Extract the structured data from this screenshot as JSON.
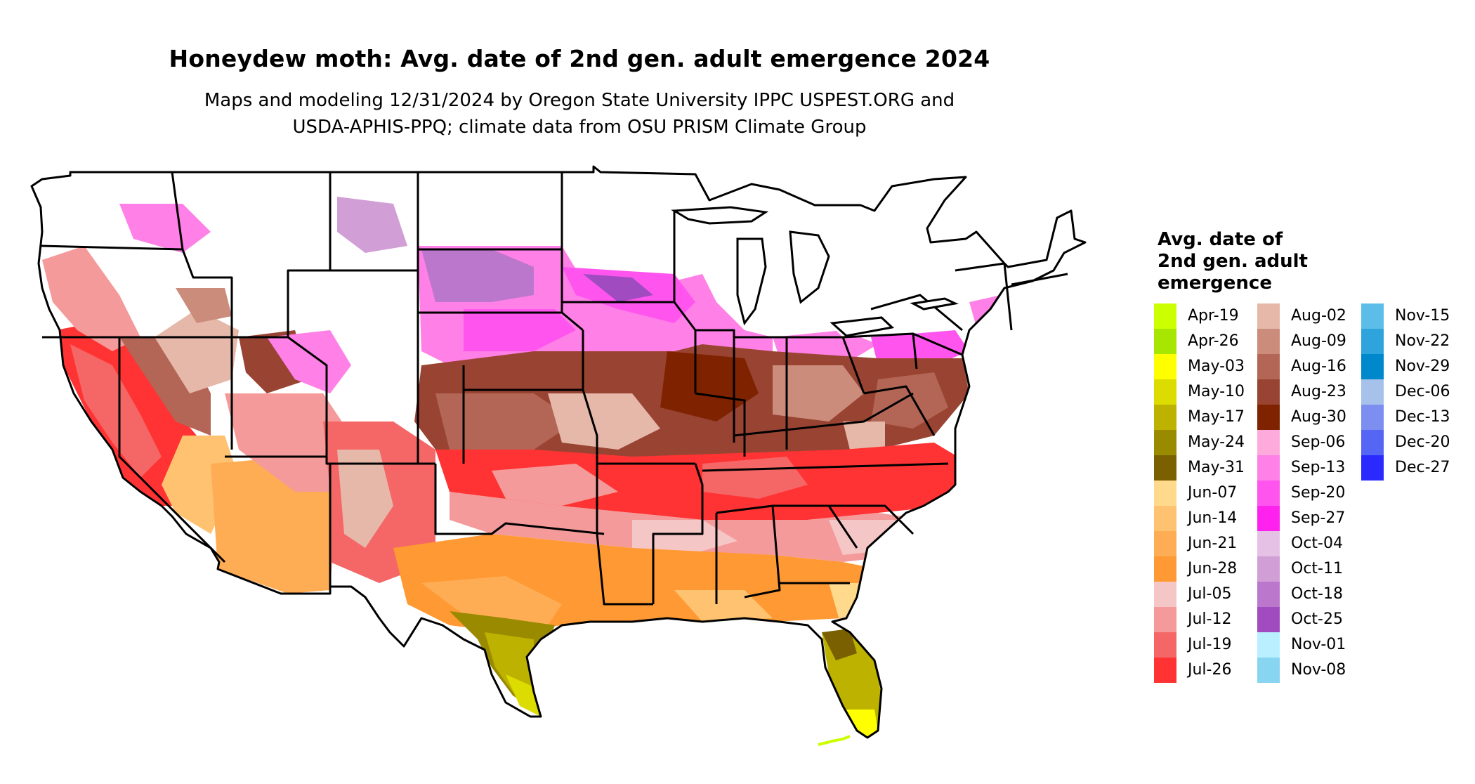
{
  "title": "Honeydew moth: Avg. date of 2nd gen. adult emergence 2024",
  "subtitle": {
    "line1": "Maps and modeling 12/31/2024 by Oregon State University IPPC USPEST.ORG and",
    "line2": "USDA-APHIS-PPQ; climate data from OSU PRISM Climate Group"
  },
  "legend": {
    "title_lines": [
      "Avg. date of",
      "2nd gen. adult",
      "emergence"
    ],
    "columns": [
      [
        {
          "label": "Apr-19",
          "color": "#ccff00"
        },
        {
          "label": "Apr-26",
          "color": "#a6e600"
        },
        {
          "label": "May-03",
          "color": "#ffff00"
        },
        {
          "label": "May-10",
          "color": "#dcdc00"
        },
        {
          "label": "May-17",
          "color": "#bdb200"
        },
        {
          "label": "May-24",
          "color": "#9a8a00"
        },
        {
          "label": "May-31",
          "color": "#7a6000"
        },
        {
          "label": "Jun-07",
          "color": "#ffd98c"
        },
        {
          "label": "Jun-14",
          "color": "#ffc271"
        },
        {
          "label": "Jun-21",
          "color": "#ffad55"
        },
        {
          "label": "Jun-28",
          "color": "#ff9933"
        },
        {
          "label": "Jul-05",
          "color": "#f5c6c6"
        },
        {
          "label": "Jul-12",
          "color": "#f59a9a"
        },
        {
          "label": "Jul-19",
          "color": "#f56666"
        },
        {
          "label": "Jul-26",
          "color": "#ff3333"
        }
      ],
      [
        {
          "label": "Aug-02",
          "color": "#e6b8aa"
        },
        {
          "label": "Aug-09",
          "color": "#cc8c7c"
        },
        {
          "label": "Aug-16",
          "color": "#b36656"
        },
        {
          "label": "Aug-23",
          "color": "#994433"
        },
        {
          "label": "Aug-30",
          "color": "#7f2200"
        },
        {
          "label": "Sep-06",
          "color": "#ffaadd"
        },
        {
          "label": "Sep-13",
          "color": "#ff80e6"
        },
        {
          "label": "Sep-20",
          "color": "#ff55ee"
        },
        {
          "label": "Sep-27",
          "color": "#ff22ee"
        },
        {
          "label": "Oct-04",
          "color": "#e6c1e6"
        },
        {
          "label": "Oct-11",
          "color": "#d19ed6"
        },
        {
          "label": "Oct-18",
          "color": "#bb77cc"
        },
        {
          "label": "Oct-25",
          "color": "#a04cc0"
        },
        {
          "label": "Nov-01",
          "color": "#b9efff"
        },
        {
          "label": "Nov-08",
          "color": "#88d5f2"
        }
      ],
      [
        {
          "label": "Nov-15",
          "color": "#5cbde8"
        },
        {
          "label": "Nov-22",
          "color": "#2fa4dc"
        },
        {
          "label": "Nov-29",
          "color": "#0088cc"
        },
        {
          "label": "Dec-06",
          "color": "#a6c2ea"
        },
        {
          "label": "Dec-13",
          "color": "#7c8ef0"
        },
        {
          "label": "Dec-20",
          "color": "#5566f5"
        },
        {
          "label": "Dec-27",
          "color": "#2a2aff"
        }
      ]
    ]
  }
}
